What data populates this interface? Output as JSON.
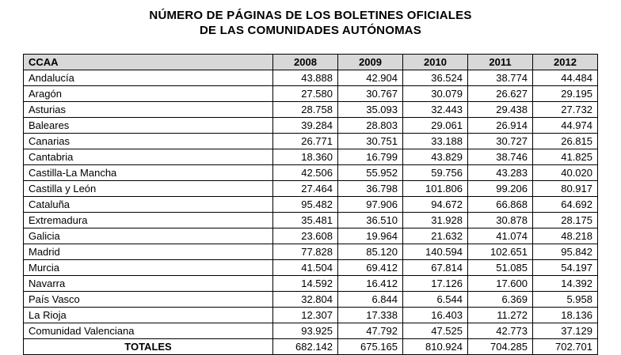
{
  "title": {
    "line1": "NÚMERO DE PÁGINAS DE LOS BOLETINES OFICIALES",
    "line2": "DE LAS COMUNIDADES AUTÓNOMAS"
  },
  "table": {
    "columns": [
      "CCAA",
      "2008",
      "2009",
      "2010",
      "2011",
      "2012"
    ],
    "rows": [
      {
        "name": "Andalucía",
        "values": [
          "43.888",
          "42.904",
          "36.524",
          "38.774",
          "44.484"
        ]
      },
      {
        "name": "Aragón",
        "values": [
          "27.580",
          "30.767",
          "30.079",
          "26.627",
          "29.195"
        ]
      },
      {
        "name": "Asturias",
        "values": [
          "28.758",
          "35.093",
          "32.443",
          "29.438",
          "27.732"
        ]
      },
      {
        "name": "Baleares",
        "values": [
          "39.284",
          "28.803",
          "29.061",
          "26.914",
          "44.974"
        ]
      },
      {
        "name": "Canarias",
        "values": [
          "26.771",
          "30.751",
          "33.188",
          "30.727",
          "26.815"
        ]
      },
      {
        "name": "Cantabria",
        "values": [
          "18.360",
          "16.799",
          "43.829",
          "38.746",
          "41.825"
        ]
      },
      {
        "name": "Castilla-La Mancha",
        "values": [
          "42.506",
          "55.952",
          "59.756",
          "43.283",
          "40.020"
        ]
      },
      {
        "name": "Castilla y León",
        "values": [
          "27.464",
          "36.798",
          "101.806",
          "99.206",
          "80.917"
        ]
      },
      {
        "name": "Cataluña",
        "values": [
          "95.482",
          "97.906",
          "94.672",
          "66.868",
          "64.692"
        ]
      },
      {
        "name": "Extremadura",
        "values": [
          "35.481",
          "36.510",
          "31.928",
          "30.878",
          "28.175"
        ]
      },
      {
        "name": "Galicia",
        "values": [
          "23.608",
          "19.964",
          "21.632",
          "41.074",
          "48.218"
        ]
      },
      {
        "name": "Madrid",
        "values": [
          "77.828",
          "85.120",
          "140.594",
          "102.651",
          "95.842"
        ]
      },
      {
        "name": "Murcia",
        "values": [
          "41.504",
          "69.412",
          "67.814",
          "51.085",
          "54.197"
        ]
      },
      {
        "name": "Navarra",
        "values": [
          "14.592",
          "16.412",
          "17.126",
          "17.600",
          "14.392"
        ]
      },
      {
        "name": "País Vasco",
        "values": [
          "32.804",
          "6.844",
          "6.544",
          "6.369",
          "5.958"
        ]
      },
      {
        "name": "La Rioja",
        "values": [
          "12.307",
          "17.338",
          "16.403",
          "11.272",
          "18.136"
        ]
      },
      {
        "name": "Comunidad Valenciana",
        "values": [
          "93.925",
          "47.792",
          "47.525",
          "42.773",
          "37.129"
        ]
      }
    ],
    "totals": {
      "label": "TOTALES",
      "values": [
        "682.142",
        "675.165",
        "810.924",
        "704.285",
        "702.701"
      ]
    }
  },
  "chart_data": {
    "type": "table",
    "title": "NÚMERO DE PÁGINAS DE LOS BOLETINES OFICIALES DE LAS COMUNIDADES AUTÓNOMAS",
    "columns": [
      "CCAA",
      "2008",
      "2009",
      "2010",
      "2011",
      "2012"
    ],
    "rows": [
      [
        "Andalucía",
        43888,
        42904,
        36524,
        38774,
        44484
      ],
      [
        "Aragón",
        27580,
        30767,
        30079,
        26627,
        29195
      ],
      [
        "Asturias",
        28758,
        35093,
        32443,
        29438,
        27732
      ],
      [
        "Baleares",
        39284,
        28803,
        29061,
        26914,
        44974
      ],
      [
        "Canarias",
        26771,
        30751,
        33188,
        30727,
        26815
      ],
      [
        "Cantabria",
        18360,
        16799,
        43829,
        38746,
        41825
      ],
      [
        "Castilla-La Mancha",
        42506,
        55952,
        59756,
        43283,
        40020
      ],
      [
        "Castilla y León",
        27464,
        36798,
        101806,
        99206,
        80917
      ],
      [
        "Cataluña",
        95482,
        97906,
        94672,
        66868,
        64692
      ],
      [
        "Extremadura",
        35481,
        36510,
        31928,
        30878,
        28175
      ],
      [
        "Galicia",
        23608,
        19964,
        21632,
        41074,
        48218
      ],
      [
        "Madrid",
        77828,
        85120,
        140594,
        102651,
        95842
      ],
      [
        "Murcia",
        41504,
        69412,
        67814,
        51085,
        54197
      ],
      [
        "Navarra",
        14592,
        16412,
        17126,
        17600,
        14392
      ],
      [
        "País Vasco",
        32804,
        6844,
        6544,
        6369,
        5958
      ],
      [
        "La Rioja",
        12307,
        17338,
        16403,
        11272,
        18136
      ],
      [
        "Comunidad Valenciana",
        93925,
        47792,
        47525,
        42773,
        37129
      ]
    ],
    "totals_row": [
      "TOTALES",
      682142,
      675165,
      810924,
      704285,
      702701
    ]
  },
  "styles": {
    "header_background": "#d8d8d8",
    "border_color": "#000000",
    "text_color": "#000000",
    "page_background": "#ffffff"
  }
}
